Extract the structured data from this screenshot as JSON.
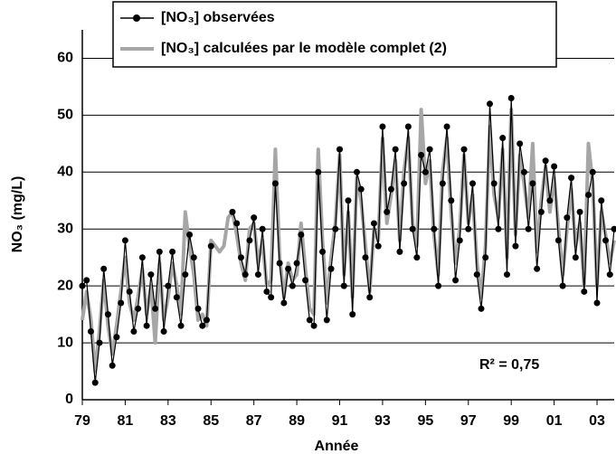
{
  "chart_data": {
    "type": "line",
    "xlabel": "Année",
    "ylabel": "NO₃ (mg/L)",
    "annotation": "R² = 0,75",
    "xlim": [
      1979,
      2003.8
    ],
    "ylim": [
      0,
      65
    ],
    "xticks": [
      {
        "value": 1979,
        "label": "79"
      },
      {
        "value": 1981,
        "label": "81"
      },
      {
        "value": 1983,
        "label": "83"
      },
      {
        "value": 1985,
        "label": "85"
      },
      {
        "value": 1987,
        "label": "87"
      },
      {
        "value": 1989,
        "label": "89"
      },
      {
        "value": 1991,
        "label": "91"
      },
      {
        "value": 1993,
        "label": "93"
      },
      {
        "value": 1995,
        "label": "95"
      },
      {
        "value": 1997,
        "label": "97"
      },
      {
        "value": 1999,
        "label": "99"
      },
      {
        "value": 2001,
        "label": "01"
      },
      {
        "value": 2003,
        "label": "03"
      }
    ],
    "yticks": [
      0,
      10,
      20,
      30,
      40,
      50,
      60
    ],
    "grid": true,
    "legend": "top",
    "x": [
      1979.0,
      1979.2,
      1979.4,
      1979.6,
      1979.8,
      1980.0,
      1980.2,
      1980.4,
      1980.6,
      1980.8,
      1981.0,
      1981.2,
      1981.4,
      1981.6,
      1981.8,
      1982.0,
      1982.2,
      1982.4,
      1982.6,
      1982.8,
      1983.0,
      1983.2,
      1983.4,
      1983.6,
      1983.8,
      1984.0,
      1984.2,
      1984.4,
      1984.6,
      1984.8,
      1985.0,
      1985.2,
      1985.4,
      1985.6,
      1985.8,
      1986.0,
      1986.2,
      1986.4,
      1986.6,
      1986.8,
      1987.0,
      1987.2,
      1987.4,
      1987.6,
      1987.8,
      1988.0,
      1988.2,
      1988.4,
      1988.6,
      1988.8,
      1989.0,
      1989.2,
      1989.4,
      1989.6,
      1989.8,
      1990.0,
      1990.2,
      1990.4,
      1990.6,
      1990.8,
      1991.0,
      1991.2,
      1991.4,
      1991.6,
      1991.8,
      1992.0,
      1992.2,
      1992.4,
      1992.6,
      1992.8,
      1993.0,
      1993.2,
      1993.4,
      1993.6,
      1993.8,
      1994.0,
      1994.2,
      1994.4,
      1994.6,
      1994.8,
      1995.0,
      1995.2,
      1995.4,
      1995.6,
      1995.8,
      1996.0,
      1996.2,
      1996.4,
      1996.6,
      1996.8,
      1997.0,
      1997.2,
      1997.4,
      1997.6,
      1997.8,
      1998.0,
      1998.2,
      1998.4,
      1998.6,
      1998.8,
      1999.0,
      1999.2,
      1999.4,
      1999.6,
      1999.8,
      2000.0,
      2000.2,
      2000.4,
      2000.6,
      2000.8,
      2001.0,
      2001.2,
      2001.4,
      2001.6,
      2001.8,
      2002.0,
      2002.2,
      2002.4,
      2002.6,
      2002.8,
      2003.0,
      2003.2,
      2003.4,
      2003.6,
      2003.8
    ],
    "series": [
      {
        "name": "[NO₃] observées",
        "color": "#000000",
        "values": [
          20,
          21,
          12,
          3,
          10,
          23,
          15,
          6,
          11,
          17,
          28,
          19,
          12,
          16,
          25,
          13,
          22,
          16,
          26,
          12,
          20,
          26,
          18,
          13,
          22,
          29,
          25,
          16,
          13,
          14,
          27,
          null,
          null,
          null,
          null,
          33,
          31,
          25,
          22,
          28,
          32,
          22,
          30,
          19,
          18,
          38,
          24,
          17,
          23,
          20,
          24,
          29,
          21,
          14,
          13,
          40,
          26,
          14,
          23,
          30,
          44,
          20,
          35,
          15,
          40,
          37,
          25,
          18,
          31,
          27,
          48,
          33,
          37,
          44,
          26,
          38,
          48,
          30,
          25,
          43,
          40,
          44,
          30,
          20,
          38,
          48,
          35,
          21,
          28,
          44,
          30,
          38,
          22,
          16,
          25,
          52,
          38,
          30,
          46,
          22,
          53,
          27,
          45,
          40,
          30,
          38,
          23,
          33,
          42,
          35,
          41,
          28,
          20,
          32,
          39,
          25,
          33,
          19,
          36,
          40,
          17,
          35,
          28,
          22,
          30
        ]
      },
      {
        "name": "[NO₃] calculées par le modèle complet (2)",
        "color": "#a6a6a6",
        "values": [
          14,
          19,
          14,
          5,
          12,
          21,
          13,
          8,
          13,
          19,
          25,
          17,
          14,
          18,
          23,
          15,
          20,
          10,
          24,
          14,
          18,
          24,
          20,
          15,
          33,
          27,
          22,
          14,
          15,
          13,
          28,
          27,
          26,
          27,
          32,
          33,
          29,
          24,
          21,
          30,
          31,
          24,
          28,
          20,
          21,
          44,
          25,
          18,
          24,
          21,
          22,
          31,
          23,
          16,
          15,
          44,
          28,
          17,
          25,
          31,
          43,
          22,
          33,
          18,
          39,
          35,
          27,
          19,
          30,
          28,
          46,
          31,
          36,
          42,
          28,
          40,
          46,
          31,
          27,
          51,
          38,
          42,
          29,
          22,
          40,
          46,
          33,
          24,
          30,
          43,
          31,
          36,
          24,
          18,
          27,
          48,
          36,
          32,
          44,
          25,
          51,
          29,
          43,
          38,
          32,
          45,
          26,
          35,
          41,
          33,
          39,
          30,
          22,
          30,
          37,
          27,
          31,
          20,
          45,
          38,
          20,
          33,
          29,
          24,
          28
        ]
      }
    ]
  }
}
